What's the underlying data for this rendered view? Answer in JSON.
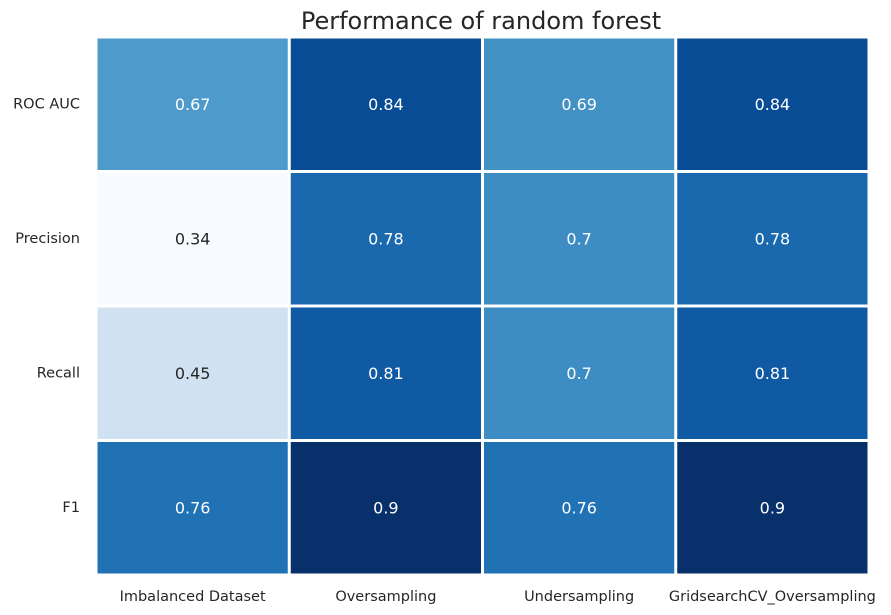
{
  "chart_data": {
    "type": "heatmap",
    "title": "Performance of random forest",
    "xlabel": "",
    "ylabel": "",
    "x_categories": [
      "Imbalanced Dataset",
      "Oversampling",
      "Undersampling",
      "GridsearchCV_Oversampling"
    ],
    "y_categories": [
      "ROC AUC",
      "Precision",
      "Recall",
      "F1"
    ],
    "values": [
      [
        0.67,
        0.84,
        0.69,
        0.84
      ],
      [
        0.34,
        0.78,
        0.7,
        0.78
      ],
      [
        0.45,
        0.81,
        0.7,
        0.81
      ],
      [
        0.76,
        0.9,
        0.76,
        0.9
      ]
    ],
    "colormap": "Blues",
    "colorbar": false,
    "annotations": true,
    "cell_separator_color": "#ffffff"
  }
}
